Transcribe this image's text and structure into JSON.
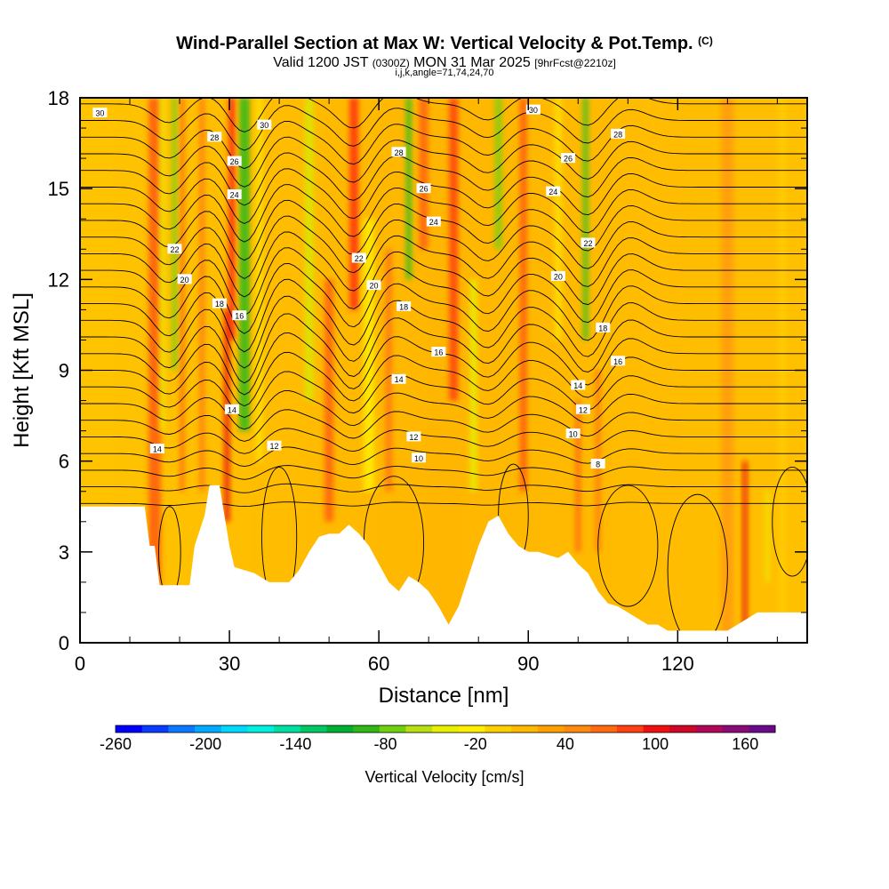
{
  "title_main": "Wind-Parallel Section at Max W: Vertical Velocity & Pot.Temp.",
  "title_mark": "(C)",
  "subtitle_a": "Valid 1200 JST",
  "subtitle_b": "(0300Z)",
  "subtitle_c": "MON 31 Mar 2025",
  "subtitle_d": "[9hrFcst@2210z]",
  "subtitle2": "i,j,k,angle=71,74,24,70",
  "chart_data": {
    "type": "heatmap",
    "xlabel": "Distance [nm]",
    "ylabel": "Height [Kft MSL]",
    "xlim": [
      0,
      146
    ],
    "ylim": [
      0,
      18
    ],
    "xticks": [
      0,
      30,
      60,
      90,
      120
    ],
    "yticks": [
      0,
      3,
      6,
      9,
      12,
      15,
      18
    ],
    "colorbar": {
      "title": "Vertical Velocity [cm/s]",
      "range": [
        -260,
        180
      ],
      "tick_values": [
        -260,
        -200,
        -140,
        -80,
        -20,
        40,
        100,
        160
      ],
      "colors": [
        "#0000ff",
        "#0a3cff",
        "#0a78ff",
        "#00aaff",
        "#00d8ff",
        "#00f0e0",
        "#00e0a0",
        "#00c864",
        "#00b030",
        "#30b818",
        "#70d010",
        "#b8e010",
        "#e8f000",
        "#ffee00",
        "#ffd000",
        "#ffb800",
        "#ffa000",
        "#ff8a10",
        "#ff6a10",
        "#ff4010",
        "#f01010",
        "#d00828",
        "#b00858",
        "#8a0a78",
        "#6a0a8a"
      ]
    },
    "terrain_kft": [
      [
        0,
        4.5
      ],
      [
        10,
        4.5
      ],
      [
        13,
        4.5
      ],
      [
        14,
        3.2
      ],
      [
        15,
        3.2
      ],
      [
        16,
        1.9
      ],
      [
        22,
        1.9
      ],
      [
        23,
        3.2
      ],
      [
        25,
        4.2
      ],
      [
        26,
        5.2
      ],
      [
        28,
        5.2
      ],
      [
        29,
        4.2
      ],
      [
        30,
        3.2
      ],
      [
        31,
        2.5
      ],
      [
        35,
        2.3
      ],
      [
        38,
        2.0
      ],
      [
        42,
        2.0
      ],
      [
        44,
        2.4
      ],
      [
        46,
        3.0
      ],
      [
        48,
        3.5
      ],
      [
        50,
        3.6
      ],
      [
        52,
        3.6
      ],
      [
        54,
        3.9
      ],
      [
        56,
        3.6
      ],
      [
        58,
        3.2
      ],
      [
        60,
        2.6
      ],
      [
        62,
        2.0
      ],
      [
        64,
        1.7
      ],
      [
        66,
        2.2
      ],
      [
        68,
        2.0
      ],
      [
        70,
        1.7
      ],
      [
        72,
        1.2
      ],
      [
        74,
        0.6
      ],
      [
        76,
        1.2
      ],
      [
        78,
        2.2
      ],
      [
        80,
        3.2
      ],
      [
        82,
        4.0
      ],
      [
        84,
        4.2
      ],
      [
        86,
        3.6
      ],
      [
        88,
        3.2
      ],
      [
        90,
        3.0
      ],
      [
        92,
        3.0
      ],
      [
        94,
        2.9
      ],
      [
        96,
        2.8
      ],
      [
        98,
        3.0
      ],
      [
        100,
        2.6
      ],
      [
        102,
        2.3
      ],
      [
        104,
        1.7
      ],
      [
        106,
        1.3
      ],
      [
        108,
        1.2
      ],
      [
        110,
        1.0
      ],
      [
        112,
        0.8
      ],
      [
        114,
        0.6
      ],
      [
        116,
        0.6
      ],
      [
        118,
        0.4
      ],
      [
        122,
        0.4
      ],
      [
        126,
        0.4
      ],
      [
        130,
        0.4
      ],
      [
        134,
        0.8
      ],
      [
        136,
        1.0
      ],
      [
        146,
        1.0
      ]
    ],
    "theta_contour_labels": [
      {
        "value": "30",
        "x": 4,
        "y": 17.5
      },
      {
        "value": "28",
        "x": 27,
        "y": 16.7
      },
      {
        "value": "30",
        "x": 37,
        "y": 17.1
      },
      {
        "value": "26",
        "x": 31,
        "y": 15.9
      },
      {
        "value": "24",
        "x": 31,
        "y": 14.8
      },
      {
        "value": "22",
        "x": 19,
        "y": 13.0
      },
      {
        "value": "20",
        "x": 21,
        "y": 12.0
      },
      {
        "value": "18",
        "x": 28,
        "y": 11.2
      },
      {
        "value": "16",
        "x": 32,
        "y": 10.8
      },
      {
        "value": "14",
        "x": 30.5,
        "y": 7.7
      },
      {
        "value": "14",
        "x": 15.5,
        "y": 6.4
      },
      {
        "value": "12",
        "x": 39,
        "y": 6.5
      },
      {
        "value": "28",
        "x": 64,
        "y": 16.2
      },
      {
        "value": "26",
        "x": 69,
        "y": 15.0
      },
      {
        "value": "24",
        "x": 71,
        "y": 13.9
      },
      {
        "value": "22",
        "x": 56,
        "y": 12.7
      },
      {
        "value": "20",
        "x": 59,
        "y": 11.8
      },
      {
        "value": "18",
        "x": 65,
        "y": 11.1
      },
      {
        "value": "16",
        "x": 72,
        "y": 9.6
      },
      {
        "value": "14",
        "x": 64,
        "y": 8.7
      },
      {
        "value": "12",
        "x": 67,
        "y": 6.8
      },
      {
        "value": "10",
        "x": 68,
        "y": 6.1
      },
      {
        "value": "30",
        "x": 91,
        "y": 17.6
      },
      {
        "value": "28",
        "x": 108,
        "y": 16.8
      },
      {
        "value": "26",
        "x": 98,
        "y": 16.0
      },
      {
        "value": "24",
        "x": 95,
        "y": 14.9
      },
      {
        "value": "22",
        "x": 102,
        "y": 13.2
      },
      {
        "value": "20",
        "x": 96,
        "y": 12.1
      },
      {
        "value": "18",
        "x": 105,
        "y": 10.4
      },
      {
        "value": "16",
        "x": 108,
        "y": 9.3
      },
      {
        "value": "14",
        "x": 100,
        "y": 8.5
      },
      {
        "value": "12",
        "x": 101,
        "y": 7.7
      },
      {
        "value": "10",
        "x": 99,
        "y": 6.9
      },
      {
        "value": "8",
        "x": 104,
        "y": 5.9
      }
    ]
  }
}
